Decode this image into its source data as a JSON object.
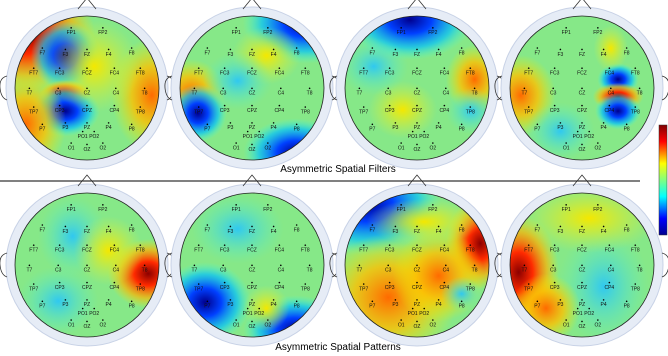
{
  "figure": {
    "captions": [
      "Asymmetric Spatial Filters",
      "Asymmetric Spatial Patterns"
    ],
    "electrodes": [
      "FP1",
      "FP2",
      "F7",
      "F3",
      "FZ",
      "F4",
      "F8",
      "FT7",
      "FC3",
      "FCZ",
      "FC4",
      "FT8",
      "T7",
      "C3",
      "CZ",
      "C4",
      "T8",
      "TP7",
      "CP3",
      "CPZ",
      "CP4",
      "TP8",
      "P7",
      "P3",
      "PZ",
      "P4",
      "P8",
      "PO1",
      "PO2",
      "O1",
      "OZ",
      "O2"
    ]
  }
}
